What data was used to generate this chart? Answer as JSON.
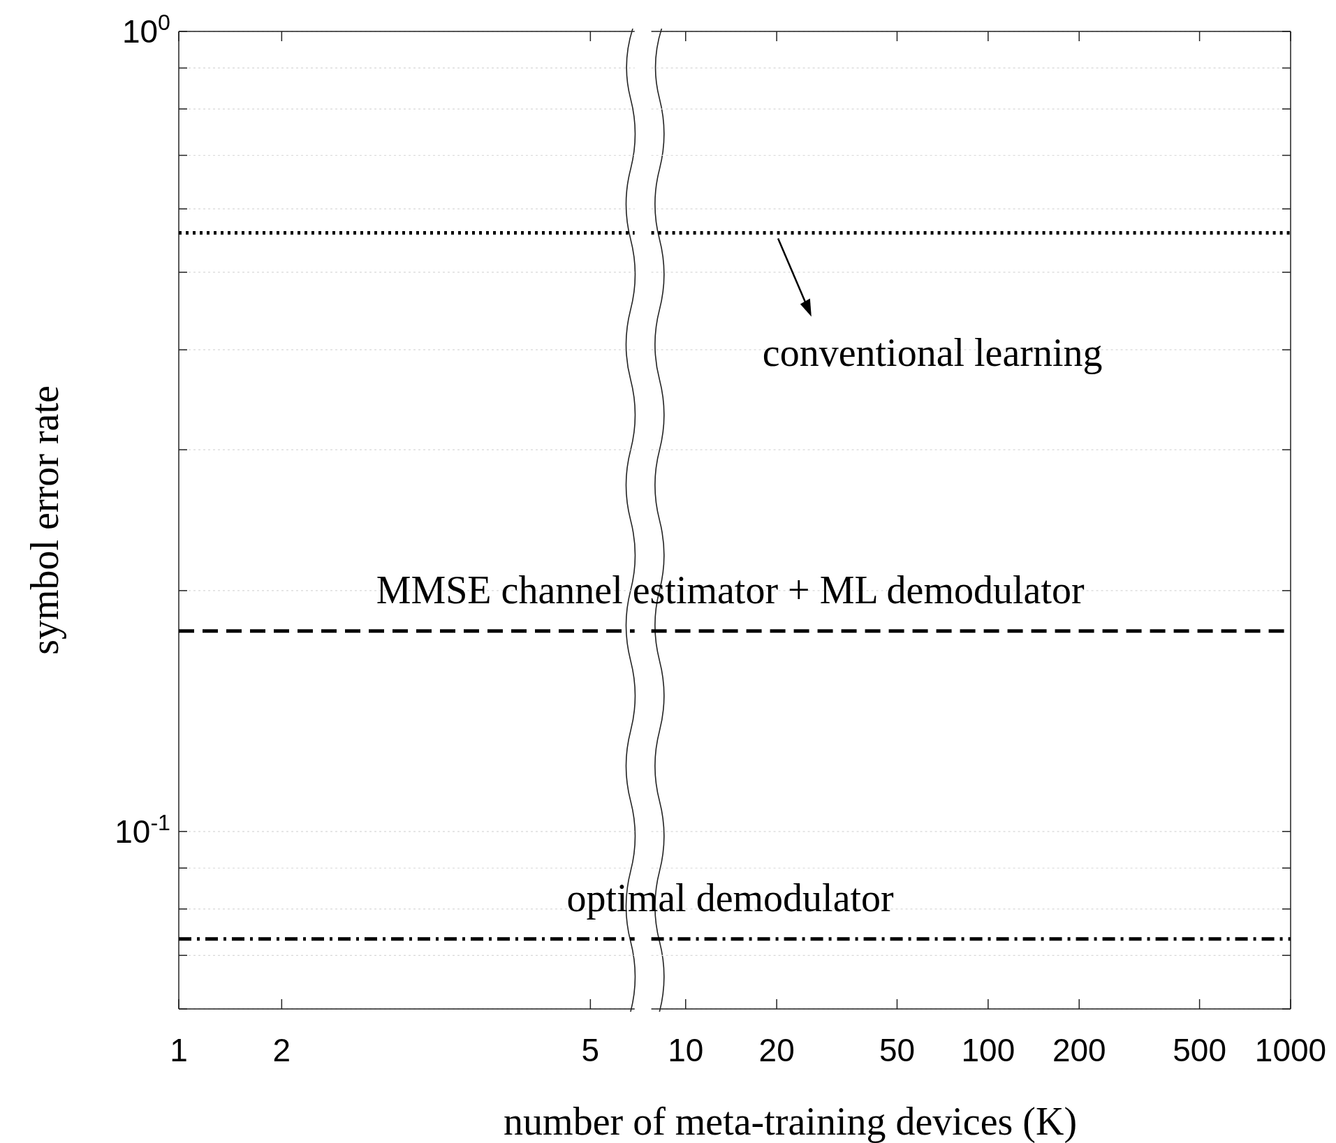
{
  "chart_data": [
    {
      "type": "line",
      "ylabel": "symbol error rate",
      "xlim": [
        1,
        5.43
      ],
      "xticks": [
        1,
        2,
        5
      ],
      "ylim": [
        0.06,
        1
      ],
      "yticks": [
        {
          "value": 0.06,
          "label": null
        },
        {
          "value": 0.07,
          "label": null
        },
        {
          "value": 0.08,
          "label": null
        },
        {
          "value": 0.09,
          "label": null
        },
        {
          "value": 0.1,
          "label": "10$^{-1}$"
        },
        {
          "value": 0.2,
          "label": null
        },
        {
          "value": 0.3,
          "label": null
        },
        {
          "value": 0.4,
          "label": null
        },
        {
          "value": 0.5,
          "label": null
        },
        {
          "value": 0.6,
          "label": null
        },
        {
          "value": 0.7,
          "label": null
        },
        {
          "value": 0.8,
          "label": null
        },
        {
          "value": 0.9,
          "label": null
        },
        {
          "value": 1,
          "label": "10$^{0}$"
        }
      ],
      "log": "y",
      "grid": "y",
      "marker": "none",
      "series": [
        {
          "color": "#000000",
          "line_style": "dotted",
          "x": [
            1,
            5.43
          ],
          "values": [
            0.56,
            0.56
          ]
        },
        {
          "color": "#000000",
          "line_style": "dashed",
          "x": [
            1,
            5.43
          ],
          "values": [
            0.178,
            0.178
          ]
        },
        {
          "color": "#000000",
          "line_style": "dashdot",
          "x": [
            1,
            5.43
          ],
          "values": [
            0.0734,
            0.0734
          ]
        }
      ]
    },
    {
      "type": "line",
      "xlabel": "number of meta-training devices (K)",
      "xlim": [
        7.7,
        1000
      ],
      "xticks": [
        10,
        20,
        50,
        100,
        200,
        500,
        1000
      ],
      "ylim": [
        0.06,
        1
      ],
      "yticks": [
        {
          "value": 0.06,
          "label": null
        },
        {
          "value": 0.07,
          "label": null
        },
        {
          "value": 0.08,
          "label": null
        },
        {
          "value": 0.09,
          "label": null
        },
        {
          "value": 0.1,
          "label": null
        },
        {
          "value": 0.2,
          "label": null
        },
        {
          "value": 0.3,
          "label": null
        },
        {
          "value": 0.4,
          "label": null
        },
        {
          "value": 0.5,
          "label": null
        },
        {
          "value": 0.6,
          "label": null
        },
        {
          "value": 0.7,
          "label": null
        },
        {
          "value": 0.8,
          "label": null
        },
        {
          "value": 0.9,
          "label": null
        },
        {
          "value": 1,
          "label": null
        }
      ],
      "log": "xy",
      "grid": "y",
      "tick_labels": "x",
      "marker": "none",
      "series": [
        {
          "color": "#000000",
          "line_style": "dotted",
          "x": [
            7.7,
            1000
          ],
          "values": [
            0.56,
            0.56
          ]
        },
        {
          "color": "#000000",
          "line_style": "dashed",
          "x": [
            7.7,
            1000
          ],
          "values": [
            0.178,
            0.178
          ]
        },
        {
          "color": "#000000",
          "line_style": "dashdot",
          "x": [
            7.7,
            1000
          ],
          "values": [
            0.0734,
            0.0734
          ]
        }
      ],
      "annotations": [
        "conventional learning",
        "MMSE channel estimator + ML demodulator",
        "optimal demodulator"
      ]
    }
  ]
}
